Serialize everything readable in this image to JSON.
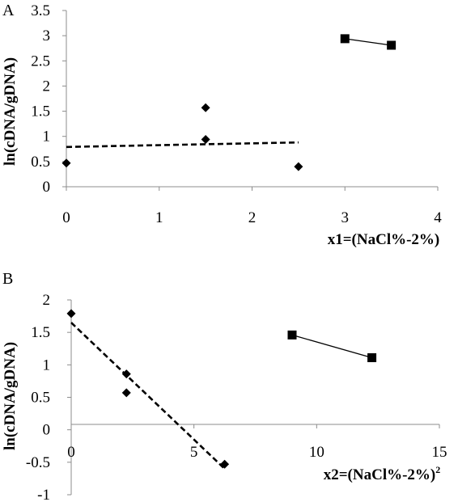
{
  "chart_data": [
    {
      "panel": "A",
      "type": "scatter",
      "ylabel": "ln(cDNA/gDNA)",
      "xlabel": "x1=(NaCl%-2%)",
      "xlim": [
        0,
        4
      ],
      "ylim": [
        0,
        3.5
      ],
      "x_ticks": [
        "0",
        "1",
        "2",
        "3",
        "4"
      ],
      "y_ticks": [
        "0",
        "0.5",
        "1",
        "1.5",
        "2",
        "2.5",
        "3",
        "3.5"
      ],
      "grid": false,
      "series": [
        {
          "marker": "diamond",
          "points": [
            [
              0,
              0.47
            ],
            [
              1.5,
              1.57
            ],
            [
              1.5,
              0.94
            ],
            [
              2.5,
              0.4
            ]
          ]
        },
        {
          "marker": "square",
          "connected": true,
          "points": [
            [
              3,
              2.94
            ],
            [
              3.5,
              2.81
            ]
          ]
        }
      ],
      "trendlines": [
        {
          "style": "dashed",
          "x": [
            0,
            2.5
          ],
          "y": [
            0.79,
            0.88
          ]
        }
      ]
    },
    {
      "panel": "B",
      "type": "scatter",
      "ylabel": "ln(cDNA/gDNA)",
      "xlabel_main": "x2=(NaCl%-2%)",
      "xlabel_sup": "2",
      "xlim": [
        0,
        15
      ],
      "ylim": [
        -1,
        2
      ],
      "x_ticks": [
        "0",
        "5",
        "10",
        "15"
      ],
      "y_ticks": [
        "-1",
        "-0.5",
        "0",
        "0.5",
        "1",
        "1.5",
        "2"
      ],
      "grid": false,
      "series": [
        {
          "marker": "diamond",
          "points": [
            [
              0,
              1.79
            ],
            [
              2.25,
              0.86
            ],
            [
              2.25,
              0.57
            ],
            [
              6.25,
              -0.53
            ]
          ]
        },
        {
          "marker": "square",
          "connected": true,
          "points": [
            [
              9,
              1.46
            ],
            [
              12.25,
              1.11
            ]
          ]
        }
      ],
      "trendlines": [
        {
          "style": "dashed",
          "x": [
            0,
            6.25
          ],
          "y": [
            1.65,
            -0.6
          ]
        }
      ]
    }
  ]
}
